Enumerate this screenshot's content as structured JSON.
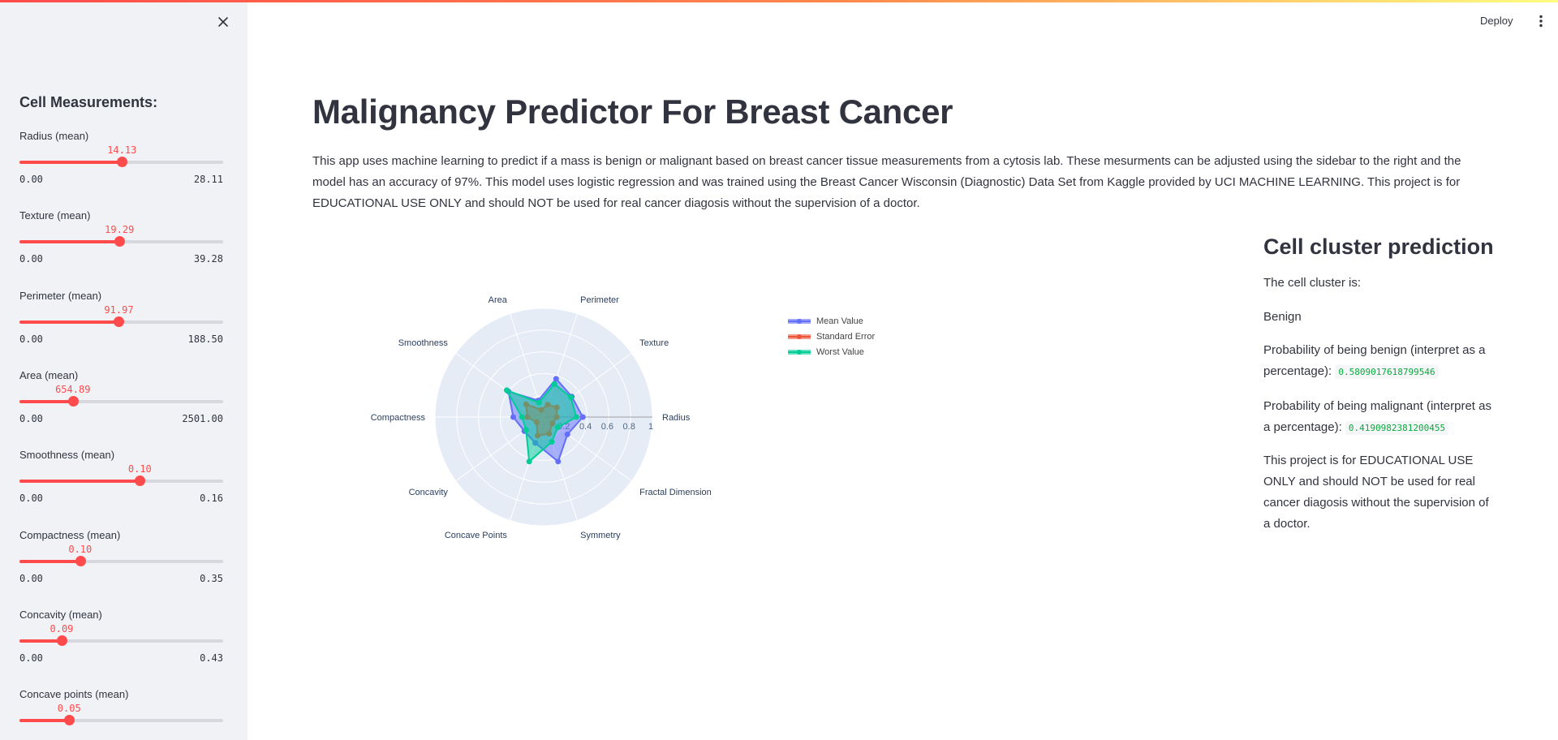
{
  "sidebar": {
    "title": "Cell Measurements:",
    "sliders": [
      {
        "label": "Radius (mean)",
        "value": "14.13",
        "min": "0.00",
        "max": "28.11",
        "fraction": 0.503
      },
      {
        "label": "Texture (mean)",
        "value": "19.29",
        "min": "0.00",
        "max": "39.28",
        "fraction": 0.491
      },
      {
        "label": "Perimeter (mean)",
        "value": "91.97",
        "min": "0.00",
        "max": "188.50",
        "fraction": 0.488
      },
      {
        "label": "Area (mean)",
        "value": "654.89",
        "min": "0.00",
        "max": "2501.00",
        "fraction": 0.262
      },
      {
        "label": "Smoothness (mean)",
        "value": "0.10",
        "min": "0.00",
        "max": "0.16",
        "fraction": 0.591
      },
      {
        "label": "Compactness (mean)",
        "value": "0.10",
        "min": "0.00",
        "max": "0.35",
        "fraction": 0.298
      },
      {
        "label": "Concavity (mean)",
        "value": "0.09",
        "min": "0.00",
        "max": "0.43",
        "fraction": 0.207
      },
      {
        "label": "Concave points (mean)",
        "value": "0.05",
        "min": "",
        "max": "",
        "fraction": 0.244
      }
    ]
  },
  "header": {
    "deploy_label": "Deploy"
  },
  "main": {
    "title": "Malignancy Predictor For Breast Cancer",
    "intro": "This app uses machine learning to predict if a mass is benign or malignant based on breast cancer tissue measurements from a cytosis lab. These mesurments can be adjusted using the sidebar to the right and the model has an accuracy of 97%. This model uses logistic regression and was trained using the Breast Cancer Wisconsin (Diagnostic) Data Set from Kaggle provided by UCI MACHINE LEARNING. This project is for EDUCATIONAL USE ONLY and should NOT be used for real cancer diagosis without the supervision of a doctor."
  },
  "prediction": {
    "title": "Cell cluster prediction",
    "cluster_label": "The cell cluster is:",
    "result": "Benign",
    "benign_label": "Probability of being benign (interpret as a percentage):",
    "benign_value": "0.5809017618799546",
    "malignant_label": "Probability of being malignant (interpret as a percentage):",
    "malignant_value": "0.4190982381200455",
    "disclaimer": "This project is for EDUCATIONAL USE ONLY and should NOT be used for real cancer diagosis without the supervision of a doctor."
  },
  "chart_data": {
    "type": "radar",
    "categories": [
      "Radius",
      "Texture",
      "Perimeter",
      "Area",
      "Smoothness",
      "Compactness",
      "Concavity",
      "Concave Points",
      "Symmetry",
      "Fractal Dimension"
    ],
    "radial_ticks": [
      "0.2",
      "0.4",
      "0.6",
      "0.8",
      "1"
    ],
    "range": [
      0,
      1
    ],
    "series": [
      {
        "name": "Mean Value",
        "color": "#636efa",
        "values": [
          0.36,
          0.32,
          0.37,
          0.16,
          0.4,
          0.28,
          0.22,
          0.25,
          0.43,
          0.27
        ]
      },
      {
        "name": "Standard Error",
        "color": "#ef553b",
        "values": [
          0.12,
          0.15,
          0.12,
          0.07,
          0.2,
          0.15,
          0.08,
          0.18,
          0.16,
          0.1
        ]
      },
      {
        "name": "Worst Value",
        "color": "#00cc96",
        "values": [
          0.3,
          0.31,
          0.32,
          0.14,
          0.42,
          0.2,
          0.2,
          0.43,
          0.24,
          0.16
        ]
      }
    ],
    "legend_position": "right"
  }
}
